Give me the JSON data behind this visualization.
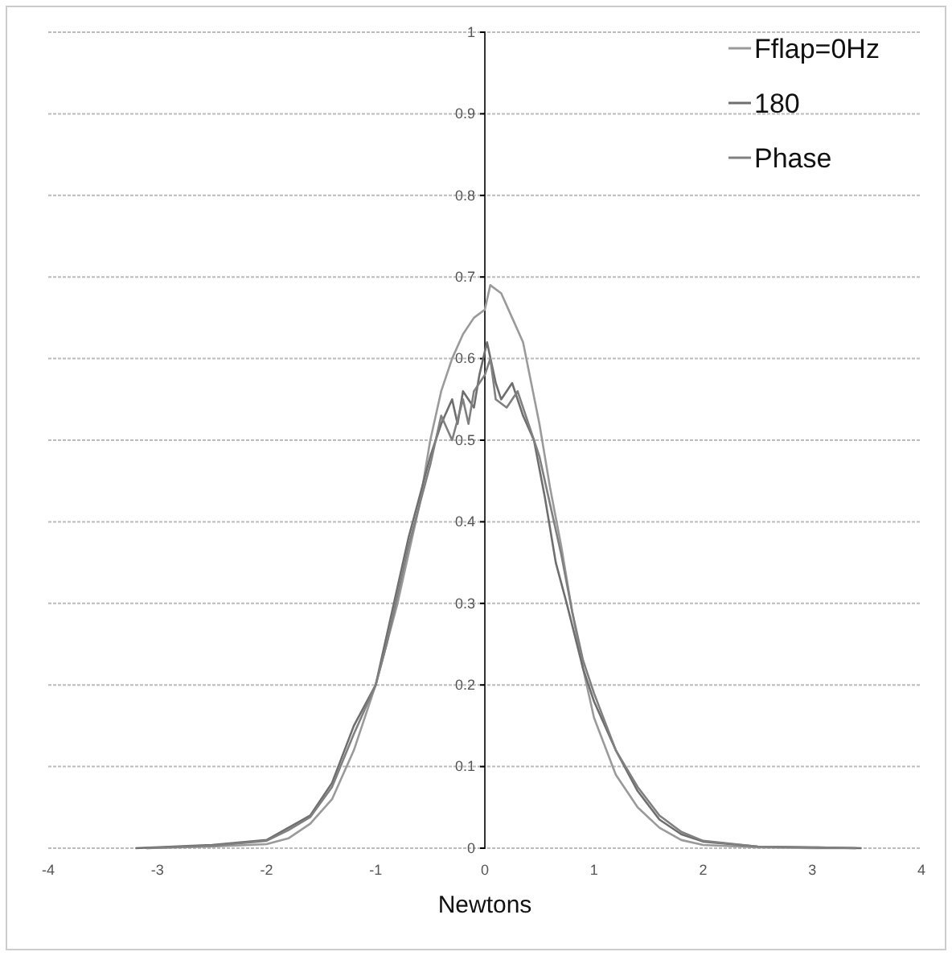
{
  "chart_data": {
    "type": "line",
    "xlabel": "Newtons",
    "xlim": [
      -4,
      4
    ],
    "xticks": [
      -4,
      -3,
      -2,
      -1,
      0,
      1,
      2,
      3,
      4
    ],
    "ylim": [
      0,
      1
    ],
    "yticks": [
      0,
      0.1,
      0.2,
      0.3,
      0.4,
      0.5,
      0.6,
      0.7,
      0.8,
      0.9,
      1
    ],
    "grid": "y",
    "legend": "top right",
    "marker": "none",
    "line_style": "solid",
    "series": [
      {
        "name": "Fflap=0Hz",
        "color": "#9a9a9a",
        "x": [
          -3.1,
          -2.5,
          -2,
          -1.8,
          -1.6,
          -1.4,
          -1.2,
          -1,
          -0.8,
          -0.6,
          -0.5,
          -0.4,
          -0.3,
          -0.2,
          -0.1,
          0,
          0.05,
          0.15,
          0.25,
          0.35,
          0.5,
          0.6,
          0.7,
          0.8,
          0.9,
          1,
          1.2,
          1.4,
          1.6,
          1.8,
          2,
          2.5,
          3,
          3.4
        ],
        "values": [
          0,
          0.002,
          0.005,
          0.012,
          0.03,
          0.06,
          0.12,
          0.2,
          0.3,
          0.42,
          0.5,
          0.56,
          0.6,
          0.63,
          0.65,
          0.66,
          0.69,
          0.68,
          0.65,
          0.62,
          0.52,
          0.44,
          0.37,
          0.29,
          0.22,
          0.16,
          0.09,
          0.05,
          0.025,
          0.01,
          0.004,
          0.001,
          0,
          0
        ]
      },
      {
        "name": "180",
        "color": "#6e6e6e",
        "x": [
          -3.2,
          -2.5,
          -2,
          -1.8,
          -1.6,
          -1.4,
          -1.2,
          -1,
          -0.9,
          -0.8,
          -0.7,
          -0.6,
          -0.5,
          -0.4,
          -0.3,
          -0.25,
          -0.2,
          -0.1,
          -0.05,
          0.02,
          0.1,
          0.15,
          0.25,
          0.35,
          0.45,
          0.55,
          0.65,
          0.75,
          0.9,
          1,
          1.2,
          1.4,
          1.6,
          1.8,
          2,
          2.5,
          3,
          3.45
        ],
        "values": [
          0,
          0.004,
          0.01,
          0.025,
          0.04,
          0.08,
          0.15,
          0.2,
          0.26,
          0.32,
          0.38,
          0.43,
          0.48,
          0.52,
          0.55,
          0.52,
          0.56,
          0.54,
          0.58,
          0.62,
          0.57,
          0.55,
          0.57,
          0.53,
          0.5,
          0.43,
          0.35,
          0.3,
          0.22,
          0.18,
          0.12,
          0.07,
          0.035,
          0.017,
          0.008,
          0.002,
          0.001,
          0
        ]
      },
      {
        "name": "Phase",
        "color": "#808080",
        "x": [
          -3.1,
          -2.5,
          -2,
          -1.8,
          -1.6,
          -1.4,
          -1.2,
          -1,
          -0.9,
          -0.8,
          -0.7,
          -0.6,
          -0.5,
          -0.45,
          -0.4,
          -0.3,
          -0.2,
          -0.15,
          -0.1,
          0,
          0.05,
          0.1,
          0.2,
          0.3,
          0.4,
          0.5,
          0.6,
          0.7,
          0.8,
          0.9,
          1,
          1.2,
          1.4,
          1.6,
          1.8,
          2,
          2.5,
          3,
          3.4
        ],
        "values": [
          0,
          0.003,
          0.009,
          0.022,
          0.038,
          0.075,
          0.14,
          0.2,
          0.25,
          0.31,
          0.37,
          0.42,
          0.47,
          0.5,
          0.53,
          0.5,
          0.55,
          0.52,
          0.56,
          0.58,
          0.6,
          0.55,
          0.54,
          0.56,
          0.52,
          0.48,
          0.42,
          0.36,
          0.29,
          0.23,
          0.19,
          0.12,
          0.075,
          0.04,
          0.02,
          0.009,
          0.002,
          0.001,
          0
        ]
      }
    ]
  }
}
